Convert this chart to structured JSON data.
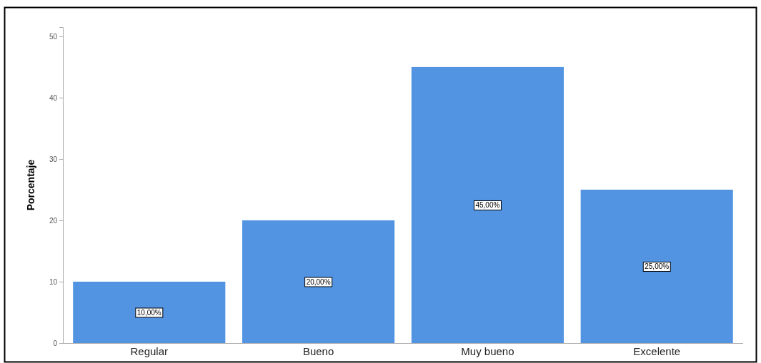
{
  "chart_data": {
    "type": "bar",
    "ylabel": "Porcentaje",
    "categories": [
      "Regular",
      "Bueno",
      "Muy bueno",
      "Excelente"
    ],
    "values": [
      10,
      20,
      45,
      25
    ],
    "color": "#5294e2",
    "value_labels": [
      "10,00%",
      "20,00%",
      "45,00%",
      "25,00%"
    ],
    "ylim": [
      0,
      51.5
    ],
    "yticks": [
      0,
      10,
      20,
      30,
      40,
      50
    ],
    "grid": false
  }
}
